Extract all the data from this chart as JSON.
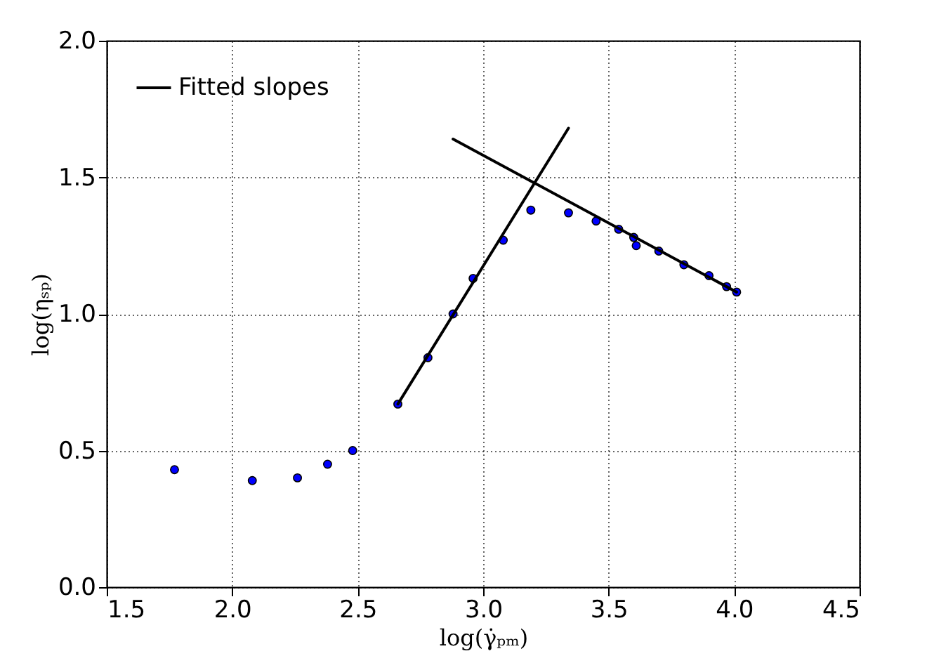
{
  "chart_data": {
    "type": "scatter",
    "xlabel": "log(γ̇ₚₘ)",
    "ylabel": "log(ηₛₚ)",
    "xlim": [
      1.5,
      4.5
    ],
    "xticks": [
      {
        "value": 1.5,
        "label": "1.5"
      },
      {
        "value": 2,
        "label": "2.0"
      },
      {
        "value": 2.5,
        "label": "2.5"
      },
      {
        "value": 3,
        "label": "3.0"
      },
      {
        "value": 3.5,
        "label": "3.5"
      },
      {
        "value": 4,
        "label": "4.0"
      },
      {
        "value": 4.5,
        "label": "4.5"
      }
    ],
    "ylim": [
      0,
      2
    ],
    "yticks": [
      {
        "value": 0,
        "label": "0.0"
      },
      {
        "value": 0.5,
        "label": "0.5"
      },
      {
        "value": 1,
        "label": "1.0"
      },
      {
        "value": 1.5,
        "label": "1.5"
      },
      {
        "value": 2,
        "label": "2.0"
      }
    ],
    "grid": true,
    "legend": "top left",
    "marker": "circle",
    "series": [
      {
        "type": "scatter",
        "color": "#0000ff",
        "x": [
          1.77,
          2.08,
          2.26,
          2.38,
          2.48,
          2.66,
          2.78,
          2.88,
          2.96,
          3.08,
          3.19,
          3.34,
          3.45,
          3.54,
          3.6,
          3.61,
          3.7,
          3.8,
          3.9,
          3.97,
          4.01
        ],
        "values": [
          0.43,
          0.39,
          0.4,
          0.45,
          0.5,
          0.67,
          0.84,
          1.0,
          1.13,
          1.27,
          1.38,
          1.37,
          1.34,
          1.31,
          1.28,
          1.25,
          1.23,
          1.18,
          1.14,
          1.1,
          1.08
        ]
      },
      {
        "type": "line",
        "name": "Fitted slopes",
        "color": "#000000",
        "line_style": "solid",
        "marker": "none",
        "x": [
          2.66,
          3.34
        ],
        "values": [
          0.67,
          1.68
        ]
      },
      {
        "type": "line",
        "color": "#000000",
        "line_style": "solid",
        "marker": "none",
        "x": [
          2.88,
          4.01
        ],
        "values": [
          1.64,
          1.08
        ]
      }
    ]
  }
}
